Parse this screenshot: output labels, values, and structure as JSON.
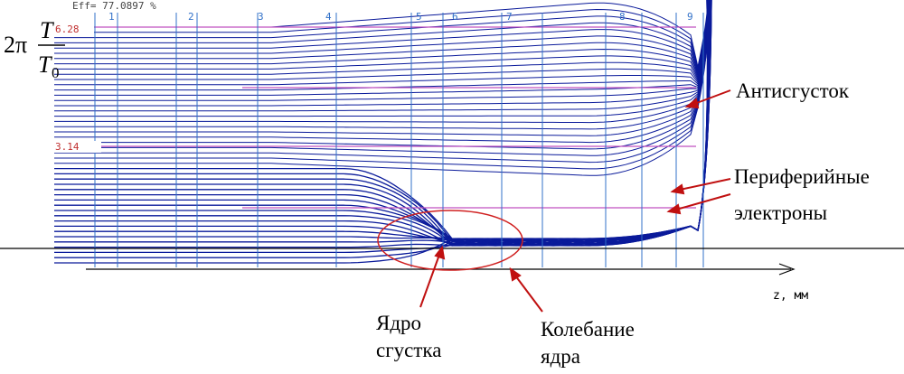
{
  "header": {
    "efficiency": "Eff= 77.0897 %"
  },
  "axis": {
    "y_label_prefix": "2π",
    "y_label_num": "T",
    "y_label_den": "T",
    "y_label_den_sub": "0",
    "x_label": "z, мм",
    "y_marks": [
      "6.28",
      "3.14"
    ]
  },
  "sections": [
    "1",
    "2",
    "3",
    "4",
    "5",
    "6",
    "7",
    "8",
    "9"
  ],
  "annotations": {
    "antibunch": "Антисгусток",
    "peripheral_1": "Периферийные",
    "peripheral_2": "электроны",
    "core_1": "Ядро",
    "core_2": "сгустка",
    "oscillation_1": "Колебание",
    "oscillation_2": "ядра"
  }
}
